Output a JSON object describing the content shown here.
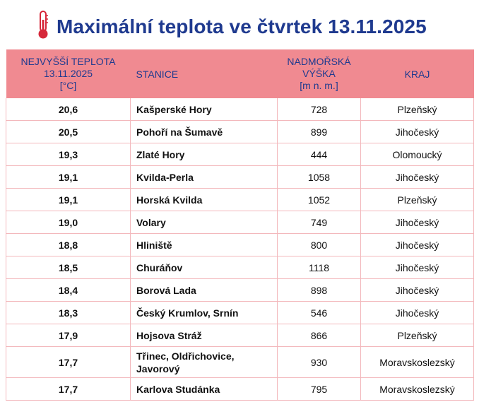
{
  "title": "Maximální teplota ve čtvrtek 13.11.2025",
  "icon": "thermometer-icon",
  "colors": {
    "title": "#1f3a8f",
    "header_bg": "#f08a91",
    "border": "#f3b8bc",
    "thermo_red": "#d6283a"
  },
  "table": {
    "headers": {
      "temp": [
        "NEJVYŠŠÍ TEPLOTA",
        "13.11.2025",
        "[°C]"
      ],
      "station": "STANICE",
      "altitude": [
        "NADMOŘSKÁ",
        "VÝŠKA",
        "[m n. m.]"
      ],
      "region": "KRAJ"
    },
    "rows": [
      {
        "temp": "20,6",
        "station": "Kašperské Hory",
        "altitude": "728",
        "region": "Plzeňský"
      },
      {
        "temp": "20,5",
        "station": "Pohoří na Šumavě",
        "altitude": "899",
        "region": "Jihočeský"
      },
      {
        "temp": "19,3",
        "station": "Zlaté Hory",
        "altitude": "444",
        "region": "Olomoucký"
      },
      {
        "temp": "19,1",
        "station": "Kvilda-Perla",
        "altitude": "1058",
        "region": "Jihočeský"
      },
      {
        "temp": "19,1",
        "station": "Horská Kvilda",
        "altitude": "1052",
        "region": "Plzeňský"
      },
      {
        "temp": "19,0",
        "station": "Volary",
        "altitude": "749",
        "region": "Jihočeský"
      },
      {
        "temp": "18,8",
        "station": "Hliniště",
        "altitude": "800",
        "region": "Jihočeský"
      },
      {
        "temp": "18,5",
        "station": "Churáňov",
        "altitude": "1118",
        "region": "Jihočeský"
      },
      {
        "temp": "18,4",
        "station": "Borová Lada",
        "altitude": "898",
        "region": "Jihočeský"
      },
      {
        "temp": "18,3",
        "station": "Český Krumlov, Srnín",
        "altitude": "546",
        "region": "Jihočeský"
      },
      {
        "temp": "17,9",
        "station": "Hojsova Stráž",
        "altitude": "866",
        "region": "Plzeňský"
      },
      {
        "temp": "17,7",
        "station": [
          "Třinec, Oldřichovice,",
          "Javorový"
        ],
        "altitude": "930",
        "region": "Moravskoslezský"
      },
      {
        "temp": "17,7",
        "station": "Karlova Studánka",
        "altitude": "795",
        "region": "Moravskoslezský"
      }
    ]
  }
}
